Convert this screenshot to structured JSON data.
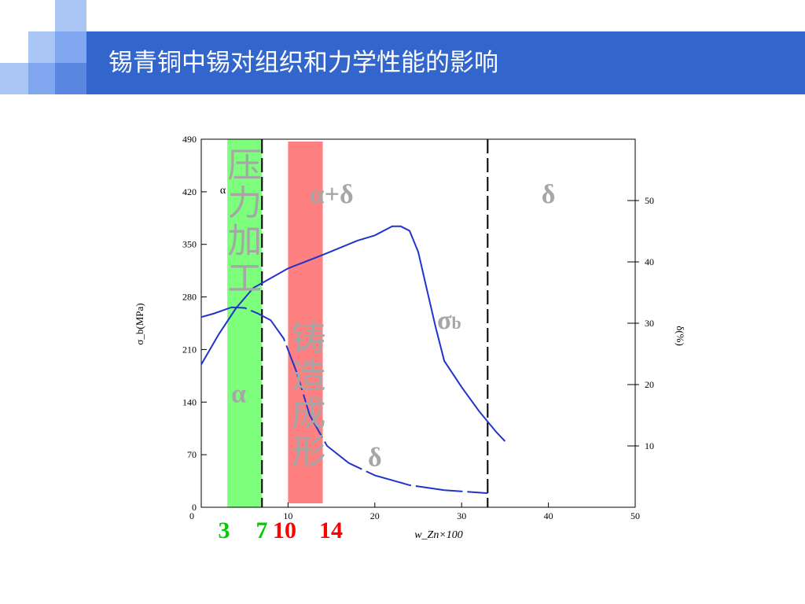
{
  "header": {
    "title": "锡青铜中锡对组织和力学性能的影响"
  },
  "colors": {
    "header_bar": "#3366cc",
    "deco_light": "#a9c6f5",
    "deco_mid": "#7fa6ef",
    "deco_dark": "#5a86e0",
    "green_band": "#7dff7d",
    "red_band": "#ff8080",
    "curve": "#2233cc",
    "annotation_gray": "#a6a6a6",
    "highlight_green": "#00cc00",
    "highlight_red": "#ff0000"
  },
  "chart_data": {
    "type": "line",
    "xlabel": "w_Zn×100",
    "ylabel_left": "σ_b(MPa)",
    "ylabel_right": "δ(%)",
    "xlim": [
      0,
      50
    ],
    "ylim_left": [
      0,
      490
    ],
    "ylim_right": [
      0,
      60
    ],
    "x_ticks": [
      0,
      10,
      20,
      30,
      40,
      50
    ],
    "x_tick_labels": [
      "0",
      "10",
      "20",
      "30",
      "40",
      "50"
    ],
    "y_left_ticks": [
      0,
      70,
      140,
      210,
      280,
      350,
      420,
      490
    ],
    "y_left_tick_labels": [
      "0",
      "70",
      "140",
      "210",
      "280",
      "350",
      "420",
      "490"
    ],
    "y_right_ticks": [
      10,
      20,
      30,
      40,
      50
    ],
    "y_right_tick_labels": [
      "10",
      "20",
      "30",
      "40",
      "50"
    ],
    "phase_boundaries": [
      7,
      33
    ],
    "phase_labels": [
      {
        "text": "α",
        "x": 2.5,
        "y": 418
      },
      {
        "text": "α+δ",
        "x": 15,
        "y": 405
      },
      {
        "text": "δ",
        "x": 40,
        "y": 405
      },
      {
        "text": "α",
        "x": 4.3,
        "y": 140
      },
      {
        "text": "δ",
        "x": 20,
        "y": 55
      }
    ],
    "series": [
      {
        "name": "σb",
        "axis": "left",
        "points": [
          [
            0,
            190
          ],
          [
            2,
            230
          ],
          [
            4,
            265
          ],
          [
            6,
            292
          ],
          [
            8,
            305
          ],
          [
            10,
            318
          ],
          [
            14,
            336
          ],
          [
            18,
            355
          ],
          [
            20,
            362
          ],
          [
            22,
            374
          ],
          [
            23,
            374
          ],
          [
            24,
            368
          ],
          [
            25,
            340
          ],
          [
            26,
            290
          ],
          [
            27,
            240
          ],
          [
            28,
            195
          ],
          [
            30,
            160
          ],
          [
            32,
            128
          ],
          [
            34,
            100
          ],
          [
            35,
            88
          ]
        ]
      },
      {
        "name": "δ",
        "axis": "right",
        "points": [
          [
            0,
            31
          ],
          [
            1.5,
            31.6
          ],
          [
            3.5,
            32.6
          ],
          [
            5,
            32.5
          ],
          [
            6.5,
            31.6
          ],
          [
            8,
            30.5
          ],
          [
            9.5,
            27.5
          ],
          [
            11,
            22
          ],
          [
            12.5,
            15
          ],
          [
            14.5,
            10
          ],
          [
            17,
            7.2
          ],
          [
            20,
            5.2
          ],
          [
            24,
            3.6
          ],
          [
            28,
            2.8
          ],
          [
            33,
            2.3
          ]
        ]
      }
    ],
    "highlight_bands": [
      {
        "x": [
          3,
          7
        ],
        "label": "压力加工",
        "color": "#7dff7d"
      },
      {
        "x": [
          10,
          14
        ],
        "label": "铸造成形",
        "color": "#ff8080"
      }
    ],
    "curve_label": {
      "symbol": "σ",
      "sub": "b"
    },
    "bottom_markers": [
      {
        "text": "3",
        "x": 3,
        "color": "#00cc00"
      },
      {
        "text": "7",
        "x": 7,
        "color": "#00cc00"
      },
      {
        "text": "10",
        "x": 10,
        "color": "#ff0000"
      },
      {
        "text": "14",
        "x": 14,
        "color": "#ff0000"
      }
    ]
  }
}
